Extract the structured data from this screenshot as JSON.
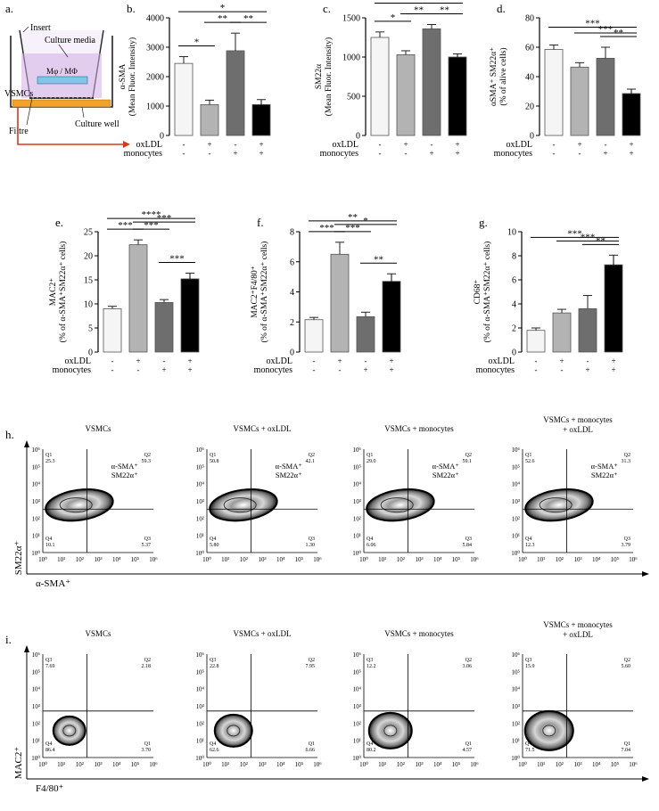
{
  "panel_a": {
    "letter": "a.",
    "labels": [
      "Insert",
      "Culture media",
      "Mφ / MΦ",
      "VSMCs",
      "Culture well",
      "Filtre"
    ]
  },
  "treatment": {
    "row_labels": [
      "oxLDL",
      "monocytes"
    ],
    "oxldl": [
      "-",
      "+",
      "-",
      "+"
    ],
    "monocytes": [
      "-",
      "-",
      "+",
      "+"
    ]
  },
  "bar_colors": [
    "#f5f5f5",
    "#b3b3b3",
    "#6e6e6e",
    "#000000"
  ],
  "chart_data": [
    {
      "panel": "b.",
      "type": "bar",
      "ylabel_lines": [
        "α-SMA",
        "(Mean Fluor. Intensity)"
      ],
      "ylim": [
        0,
        4000
      ],
      "yticks": [
        0,
        1000,
        2000,
        3000,
        4000
      ],
      "values": [
        2450,
        1050,
        2880,
        1050
      ],
      "errors": [
        230,
        150,
        600,
        170
      ],
      "sig": [
        {
          "from": 0,
          "to": 1,
          "label": "*"
        },
        {
          "from": 2,
          "to": 3,
          "label": "**"
        },
        {
          "from": 1,
          "to": 2,
          "label": "**"
        },
        {
          "from": 0,
          "to": 3,
          "label": "*"
        }
      ]
    },
    {
      "panel": "c.",
      "type": "bar",
      "ylabel_lines": [
        "SM22α",
        "(Mean Fluor. Intensity)"
      ],
      "ylim": [
        0,
        1500
      ],
      "yticks": [
        0,
        500,
        1000,
        1500
      ],
      "values": [
        1250,
        1030,
        1360,
        1000
      ],
      "errors": [
        70,
        50,
        55,
        40
      ],
      "sig": [
        {
          "from": 0,
          "to": 1,
          "label": "*"
        },
        {
          "from": 1,
          "to": 2,
          "label": "**"
        },
        {
          "from": 2,
          "to": 3,
          "label": "**"
        },
        {
          "from": 0,
          "to": 3,
          "label": "**"
        }
      ]
    },
    {
      "panel": "d.",
      "type": "bar",
      "ylabel_lines": [
        "αSMA⁺ SM22α⁺",
        "(% of alive cells)"
      ],
      "ylim": [
        0,
        80
      ],
      "yticks": [
        0,
        20,
        40,
        60,
        80
      ],
      "values": [
        58.5,
        46.5,
        52.5,
        28.5
      ],
      "errors": [
        3,
        3,
        7.5,
        3
      ],
      "sig": [
        {
          "from": 2,
          "to": 3,
          "label": "**"
        },
        {
          "from": 1,
          "to": 3,
          "label": "***"
        },
        {
          "from": 0,
          "to": 3,
          "label": "***"
        }
      ]
    },
    {
      "panel": "e.",
      "type": "bar",
      "ylabel_lines": [
        "MAC2⁺",
        "(% of α-SMA⁺SM22α⁺ cells)"
      ],
      "ylim": [
        0,
        25
      ],
      "yticks": [
        0,
        5,
        10,
        15,
        20,
        25
      ],
      "values": [
        9.0,
        22.3,
        10.3,
        15.2
      ],
      "errors": [
        0.5,
        1.0,
        0.6,
        1.2
      ],
      "sig": [
        {
          "from": 0,
          "to": 1,
          "label": "***"
        },
        {
          "from": 1,
          "to": 2,
          "label": "***"
        },
        {
          "from": 1,
          "to": 3,
          "label": "***"
        },
        {
          "from": 0,
          "to": 3,
          "label": "****"
        },
        {
          "from": 2,
          "to": 3,
          "label": "***"
        }
      ]
    },
    {
      "panel": "f.",
      "type": "bar",
      "ylabel_lines": [
        "MAC2⁺F4/80⁺",
        "(% of α-SMA⁺SM22α⁺ cells)"
      ],
      "ylim": [
        0,
        8
      ],
      "yticks": [
        0,
        2,
        4,
        6,
        8
      ],
      "values": [
        2.15,
        6.5,
        2.35,
        4.7
      ],
      "errors": [
        0.15,
        0.8,
        0.3,
        0.5
      ],
      "sig": [
        {
          "from": 0,
          "to": 1,
          "label": "***"
        },
        {
          "from": 1,
          "to": 2,
          "label": "***"
        },
        {
          "from": 1,
          "to": 3,
          "label": "*"
        },
        {
          "from": 0,
          "to": 3,
          "label": "**"
        },
        {
          "from": 2,
          "to": 3,
          "label": "**"
        }
      ]
    },
    {
      "panel": "g.",
      "type": "bar",
      "ylabel_lines": [
        "CD68⁺",
        "(% of α-SMA⁺SM22α⁺ cells)"
      ],
      "ylim": [
        0,
        10
      ],
      "yticks": [
        0,
        2,
        4,
        6,
        8,
        10
      ],
      "values": [
        1.8,
        3.25,
        3.6,
        7.25
      ],
      "errors": [
        0.2,
        0.3,
        1.1,
        0.8
      ],
      "sig": [
        {
          "from": 2,
          "to": 3,
          "label": "**"
        },
        {
          "from": 1,
          "to": 3,
          "label": "***"
        },
        {
          "from": 0,
          "to": 3,
          "label": "***"
        }
      ]
    }
  ],
  "flow_h": {
    "letter": "h.",
    "yaxis_label": "SM22α⁺",
    "xaxis_label": "α-SMA⁺",
    "ticks": [
      "10⁰",
      "10¹",
      "10²",
      "10³",
      "10⁴",
      "10⁵",
      "10⁶"
    ],
    "quadrant_labels": [
      "Q1",
      "Q2",
      "Q3",
      "Q4"
    ],
    "gate_label_lines": [
      "α-SMA⁺",
      "SM22α⁺"
    ],
    "plots": [
      {
        "title_lines": [
          "VSMCs"
        ],
        "q1": "25.3",
        "q2": "59.3",
        "q3": "5.37",
        "q4": "10.1"
      },
      {
        "title_lines": [
          "VSMCs + oxLDL"
        ],
        "q1": "50.8",
        "q2": "42.1",
        "q3": "1.30",
        "q4": "5.80"
      },
      {
        "title_lines": [
          "VSMCs + monocytes"
        ],
        "q1": "29.0",
        "q2": "59.1",
        "q3": "5.84",
        "q4": "6.06"
      },
      {
        "title_lines": [
          "VSMCs + monocytes",
          "+ oxLDL"
        ],
        "q1": "52.6",
        "q2": "31.3",
        "q3": "3.79",
        "q4": "12.3"
      }
    ]
  },
  "flow_i": {
    "letter": "i.",
    "yaxis_label": "MAC2⁺",
    "xaxis_label": "F4/80⁺",
    "ticks": [
      "10⁰",
      "10¹",
      "10²",
      "10³",
      "10⁴",
      "10⁵",
      "10⁶"
    ],
    "quadrant_labels": [
      "Q3",
      "Q2",
      "Q1",
      "Q4"
    ],
    "plots": [
      {
        "title_lines": [
          "VSMCs"
        ],
        "q3": "7.69",
        "q2": "2.18",
        "q1": "3.70",
        "q4": "86.4"
      },
      {
        "title_lines": [
          "VSMCs + oxLDL"
        ],
        "q3": "22.8",
        "q2": "7.95",
        "q1": "6.66",
        "q4": "62.6"
      },
      {
        "title_lines": [
          "VSMCs + monocytes"
        ],
        "q3": "12.2",
        "q2": "3.06",
        "q1": "4.57",
        "q4": "80.2"
      },
      {
        "title_lines": [
          "VSMCs + monocytes",
          "+ oxLDL"
        ],
        "q3": "15.9",
        "q2": "5.60",
        "q1": "7.04",
        "q4": "71.5"
      }
    ]
  }
}
